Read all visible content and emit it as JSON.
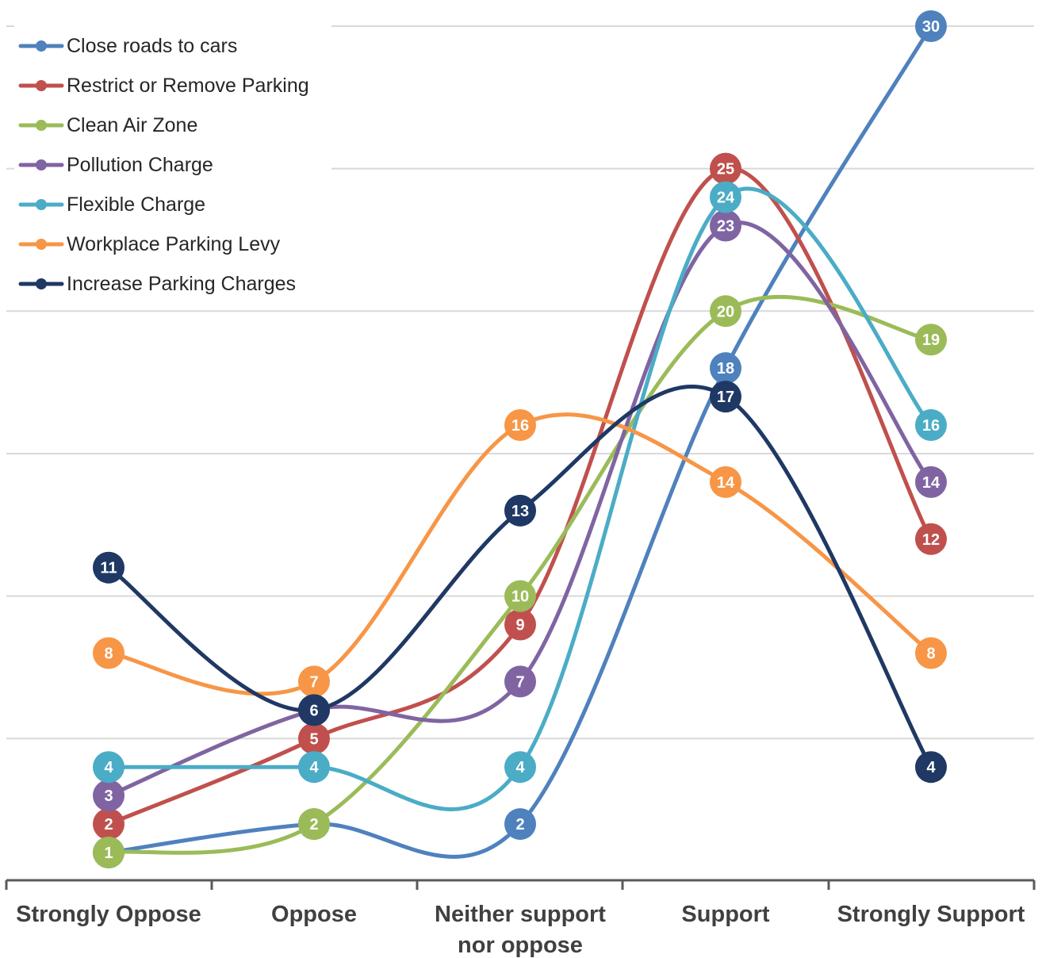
{
  "chart_data": {
    "type": "line",
    "smooth": true,
    "categories": [
      "Strongly Oppose",
      "Oppose",
      "Neither support nor oppose",
      "Support",
      "Strongly Support"
    ],
    "ylim": [
      -1,
      30
    ],
    "grid": true,
    "legend_position": "top-left",
    "series": [
      {
        "name": "Close roads to cars",
        "color": "#4f81bd",
        "values": [
          1,
          2,
          2,
          18,
          30
        ]
      },
      {
        "name": "Restrict or Remove Parking",
        "color": "#c0504d",
        "values": [
          2,
          5,
          9,
          25,
          12
        ]
      },
      {
        "name": "Clean Air Zone",
        "color": "#9bbb59",
        "values": [
          1,
          2,
          10,
          20,
          19
        ]
      },
      {
        "name": "Pollution Charge",
        "color": "#8064a2",
        "values": [
          3,
          6,
          7,
          23,
          14
        ]
      },
      {
        "name": "Flexible Charge",
        "color": "#4bacc6",
        "values": [
          4,
          4,
          4,
          24,
          16
        ]
      },
      {
        "name": "Workplace Parking Levy",
        "color": "#f79646",
        "values": [
          8,
          7,
          16,
          14,
          8
        ]
      },
      {
        "name": "Increase Parking Charges",
        "color": "#1f3864",
        "values": [
          11,
          6,
          13,
          17,
          4
        ]
      }
    ]
  }
}
